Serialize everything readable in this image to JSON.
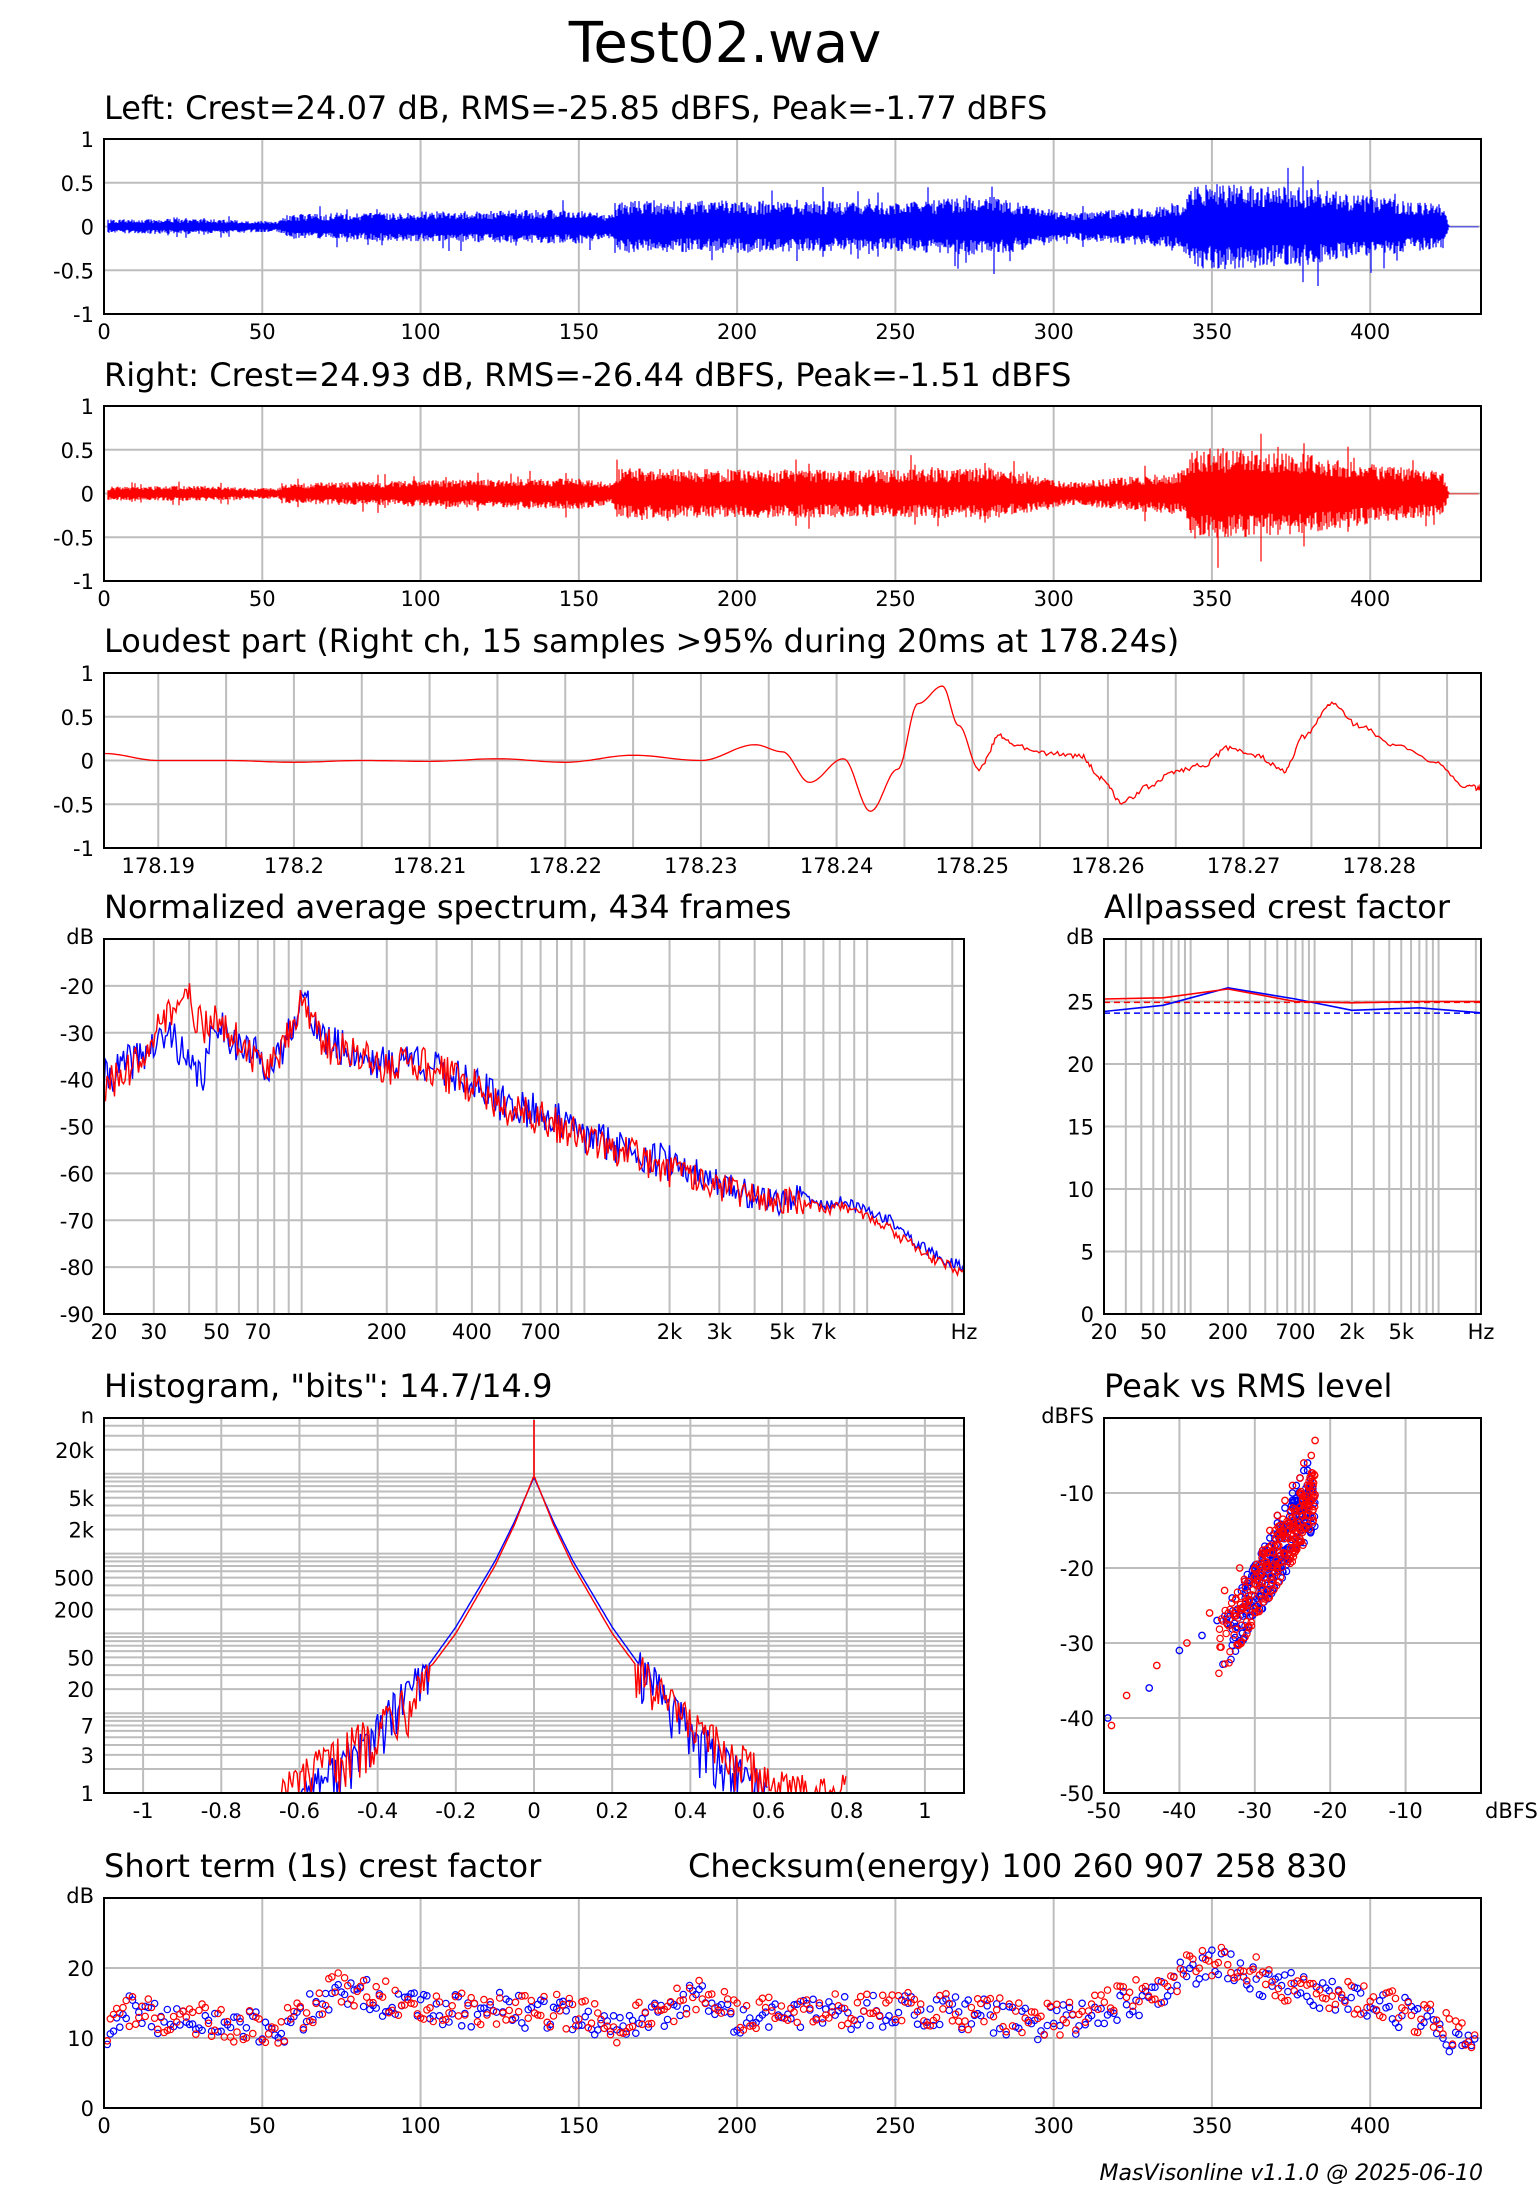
{
  "page": {
    "title": "Test02.wav",
    "footer": "MasVisonline v1.1.0 @ 2025-06-10"
  },
  "colors": {
    "left": "#0000ff",
    "right": "#ff0000",
    "grid": "#bdbdbd",
    "frame": "#000000"
  },
  "chart_data": [
    {
      "id": "left-waveform",
      "type": "line",
      "title": "Left: Crest=24.07 dB, RMS=-25.85 dBFS, Peak=-1.77 dBFS",
      "color": "blue",
      "xlim": [
        0,
        435
      ],
      "ylim": [
        -1,
        1
      ],
      "xticks": [
        0,
        50,
        100,
        150,
        200,
        250,
        300,
        350,
        400
      ],
      "xtick_labels": [
        "0",
        "50",
        "100",
        "150",
        "200",
        "250",
        "300",
        "350",
        "400"
      ],
      "yticks": [
        1,
        0.5,
        0,
        -0.5,
        -1
      ],
      "ytick_labels": [
        "1",
        "0.5",
        "0",
        "-0.5",
        "-1"
      ],
      "envelope": [
        {
          "t": 3,
          "a": 0.08
        },
        {
          "t": 30,
          "a": 0.09
        },
        {
          "t": 55,
          "a": 0.06
        },
        {
          "t": 58,
          "a": 0.14
        },
        {
          "t": 100,
          "a": 0.17
        },
        {
          "t": 150,
          "a": 0.2
        },
        {
          "t": 160,
          "a": 0.14
        },
        {
          "t": 163,
          "a": 0.3
        },
        {
          "t": 200,
          "a": 0.3
        },
        {
          "t": 250,
          "a": 0.28
        },
        {
          "t": 280,
          "a": 0.35
        },
        {
          "t": 305,
          "a": 0.15
        },
        {
          "t": 340,
          "a": 0.25
        },
        {
          "t": 345,
          "a": 0.5
        },
        {
          "t": 380,
          "a": 0.45
        },
        {
          "t": 410,
          "a": 0.3
        },
        {
          "t": 423,
          "a": 0.25
        },
        {
          "t": 425,
          "a": 0.0
        },
        {
          "t": 435,
          "a": 0.0
        }
      ]
    },
    {
      "id": "right-waveform",
      "type": "line",
      "title": "Right: Crest=24.93 dB, RMS=-26.44 dBFS, Peak=-1.51 dBFS",
      "color": "red",
      "xlim": [
        0,
        435
      ],
      "ylim": [
        -1,
        1
      ],
      "xticks": [
        0,
        50,
        100,
        150,
        200,
        250,
        300,
        350,
        400
      ],
      "xtick_labels": [
        "0",
        "50",
        "100",
        "150",
        "200",
        "250",
        "300",
        "350",
        "400"
      ],
      "yticks": [
        1,
        0.5,
        0,
        -0.5,
        -1
      ],
      "ytick_labels": [
        "1",
        "0.5",
        "0",
        "-0.5",
        "-1"
      ],
      "envelope": [
        {
          "t": 3,
          "a": 0.08
        },
        {
          "t": 30,
          "a": 0.09
        },
        {
          "t": 55,
          "a": 0.06
        },
        {
          "t": 58,
          "a": 0.12
        },
        {
          "t": 100,
          "a": 0.15
        },
        {
          "t": 150,
          "a": 0.18
        },
        {
          "t": 160,
          "a": 0.12
        },
        {
          "t": 163,
          "a": 0.3
        },
        {
          "t": 200,
          "a": 0.28
        },
        {
          "t": 250,
          "a": 0.27
        },
        {
          "t": 280,
          "a": 0.3
        },
        {
          "t": 305,
          "a": 0.13
        },
        {
          "t": 340,
          "a": 0.25
        },
        {
          "t": 345,
          "a": 0.55
        },
        {
          "t": 380,
          "a": 0.45
        },
        {
          "t": 410,
          "a": 0.3
        },
        {
          "t": 423,
          "a": 0.25
        },
        {
          "t": 425,
          "a": 0.0
        },
        {
          "t": 435,
          "a": 0.0
        }
      ]
    },
    {
      "id": "loudest-part",
      "type": "line",
      "title": "Loudest part (Right ch, 15 samples >95% during 20ms at 178.24s)",
      "color": "red",
      "xlim": [
        178.186,
        178.2875
      ],
      "ylim": [
        -1,
        1
      ],
      "xticks": [
        178.19,
        178.2,
        178.21,
        178.22,
        178.23,
        178.24,
        178.25,
        178.26,
        178.27,
        178.28
      ],
      "xtick_labels": [
        "178.19",
        "178.2",
        "178.21",
        "178.22",
        "178.23",
        "178.24",
        "178.25",
        "178.26",
        "178.27",
        "178.28"
      ],
      "yticks": [
        1,
        0.5,
        0,
        -0.5,
        -1
      ],
      "ytick_labels": [
        "1",
        "0.5",
        "0",
        "-0.5",
        "-1"
      ],
      "x": [
        178.186,
        178.19,
        178.195,
        178.2,
        178.205,
        178.21,
        178.215,
        178.22,
        178.225,
        178.23,
        178.234,
        178.236,
        178.238,
        178.2405,
        178.2425,
        178.2445,
        178.246,
        178.2478,
        178.249,
        178.2505,
        178.252,
        178.2535,
        178.256,
        178.258,
        178.2595,
        178.261,
        178.263,
        178.265,
        178.267,
        178.269,
        178.271,
        178.273,
        178.2745,
        178.2765,
        178.2785,
        178.281,
        178.284,
        178.2865,
        178.2875
      ],
      "y": [
        0.08,
        0.0,
        0.0,
        -0.02,
        0.0,
        -0.01,
        0.02,
        -0.02,
        0.06,
        0.0,
        0.18,
        0.1,
        -0.25,
        0.02,
        -0.58,
        -0.1,
        0.65,
        0.85,
        0.4,
        -0.1,
        0.28,
        0.15,
        0.08,
        0.05,
        -0.2,
        -0.48,
        -0.3,
        -0.12,
        -0.05,
        0.15,
        0.05,
        -0.12,
        0.28,
        0.65,
        0.4,
        0.18,
        0.0,
        -0.3,
        -0.32
      ]
    },
    {
      "id": "average-spectrum",
      "type": "line",
      "title": "Normalized average spectrum, 434 frames",
      "xscale": "log",
      "xlim": [
        20,
        22000
      ],
      "ylim": [
        -90,
        -10
      ],
      "ylabel": "dB",
      "xticks": [
        20,
        30,
        50,
        70,
        200,
        400,
        700,
        2000,
        3000,
        5000,
        7000,
        22000
      ],
      "xtick_labels": [
        "20",
        "30",
        "50",
        "70",
        "200",
        "400",
        "700",
        "2k",
        "3k",
        "5k",
        "7k",
        "Hz"
      ],
      "yticks": [
        -20,
        -30,
        -40,
        -50,
        -60,
        -70,
        -80,
        -90
      ],
      "ytick_labels": [
        "-20",
        "-30",
        "-40",
        "-50",
        "-60",
        "-70",
        "-80",
        "-90"
      ],
      "series": [
        {
          "name": "Left",
          "color": "blue",
          "x": [
            20,
            25,
            30,
            35,
            40,
            45,
            50,
            60,
            70,
            80,
            90,
            100,
            120,
            150,
            200,
            250,
            300,
            400,
            500,
            700,
            1000,
            1500,
            2000,
            2500,
            3000,
            4000,
            5000,
            6000,
            7000,
            8000,
            10000,
            12000,
            15000,
            18000,
            22000
          ],
          "y": [
            -40,
            -36,
            -33,
            -30,
            -38,
            -39,
            -27,
            -33,
            -35,
            -38,
            -30,
            -22,
            -32,
            -34,
            -37,
            -35,
            -38,
            -40,
            -45,
            -47,
            -52,
            -55,
            -58,
            -60,
            -62,
            -65,
            -66,
            -65,
            -67,
            -66,
            -68,
            -70,
            -75,
            -78,
            -80
          ]
        },
        {
          "name": "Right",
          "color": "red",
          "x": [
            20,
            25,
            30,
            35,
            40,
            45,
            50,
            60,
            70,
            80,
            90,
            100,
            120,
            150,
            200,
            250,
            300,
            400,
            500,
            700,
            1000,
            1500,
            2000,
            2500,
            3000,
            4000,
            5000,
            6000,
            7000,
            8000,
            10000,
            12000,
            15000,
            18000,
            22000
          ],
          "y": [
            -42,
            -38,
            -30,
            -25,
            -23,
            -30,
            -26,
            -32,
            -36,
            -37,
            -31,
            -22,
            -33,
            -34,
            -38,
            -36,
            -38,
            -41,
            -46,
            -48,
            -53,
            -56,
            -59,
            -61,
            -63,
            -65,
            -66,
            -66,
            -68,
            -67,
            -69,
            -72,
            -76,
            -79,
            -81
          ]
        }
      ]
    },
    {
      "id": "allpassed-crest",
      "type": "line",
      "title": "Allpassed crest factor",
      "xscale": "log",
      "xlim": [
        20,
        22000
      ],
      "ylim": [
        0,
        30
      ],
      "ylabel": "dB",
      "xticks": [
        20,
        50,
        200,
        700,
        2000,
        5000,
        22000
      ],
      "xtick_labels": [
        "20",
        "50",
        "200",
        "700",
        "2k",
        "5k",
        "Hz"
      ],
      "yticks": [
        25,
        20,
        15,
        10,
        5,
        0
      ],
      "ytick_labels": [
        "25",
        "20",
        "15",
        "10",
        "5",
        "0"
      ],
      "series": [
        {
          "name": "Left",
          "color": "blue",
          "x": [
            20,
            60,
            200,
            700,
            2000,
            7000,
            22000
          ],
          "y": [
            24.2,
            24.7,
            26.1,
            25.2,
            24.3,
            24.5,
            24.1
          ]
        },
        {
          "name": "Right",
          "color": "red",
          "x": [
            20,
            60,
            200,
            700,
            2000,
            7000,
            22000
          ],
          "y": [
            25.2,
            25.3,
            26.0,
            25.0,
            24.9,
            25.0,
            25.0
          ]
        }
      ],
      "reference_lines": [
        {
          "color": "blue",
          "y": 24.07
        },
        {
          "color": "red",
          "y": 24.93
        }
      ]
    },
    {
      "id": "histogram",
      "type": "line",
      "title": "Histogram, \"bits\": 14.7/14.9",
      "xlim": [
        -1.1,
        1.1
      ],
      "ylim": [
        1,
        50000
      ],
      "yscale": "log",
      "ylabel": "n",
      "xticks": [
        -1,
        -0.8,
        -0.6,
        -0.4,
        -0.2,
        0,
        0.2,
        0.4,
        0.6,
        0.8,
        1
      ],
      "xtick_labels": [
        "-1",
        "-0.8",
        "-0.6",
        "-0.4",
        "-0.2",
        "0",
        "0.2",
        "0.4",
        "0.6",
        "0.8",
        "1"
      ],
      "yticks": [
        20000,
        5000,
        2000,
        500,
        200,
        50,
        20,
        7,
        3,
        1
      ],
      "ytick_labels": [
        "20k",
        "5k",
        "2k",
        "500",
        "200",
        "50",
        "20",
        "7",
        "3",
        "1"
      ],
      "series": [
        {
          "name": "Left",
          "color": "blue",
          "x": [
            -0.6,
            -0.5,
            -0.4,
            -0.3,
            -0.2,
            -0.1,
            -0.05,
            0,
            0.05,
            0.1,
            0.2,
            0.3,
            0.4,
            0.5,
            0.6
          ],
          "y": [
            1,
            2,
            6,
            25,
            120,
            800,
            2500,
            9000,
            2500,
            800,
            120,
            25,
            6,
            2,
            1
          ]
        },
        {
          "name": "Right",
          "color": "red",
          "x": [
            -0.65,
            -0.5,
            -0.4,
            -0.3,
            -0.2,
            -0.1,
            -0.05,
            0,
            0.05,
            0.1,
            0.2,
            0.3,
            0.4,
            0.5,
            0.65,
            0.8
          ],
          "y": [
            1,
            3,
            7,
            22,
            100,
            700,
            2300,
            9500,
            2300,
            700,
            100,
            22,
            7,
            3,
            1,
            1
          ]
        }
      ]
    },
    {
      "id": "peak-vs-rms",
      "type": "scatter",
      "title": "Peak vs RMS level",
      "xlim": [
        -50,
        0
      ],
      "ylim": [
        -50,
        0
      ],
      "xlabel": "dBFS",
      "ylabel": "dBFS",
      "xticks": [
        -50,
        -40,
        -30,
        -20,
        -10
      ],
      "xtick_labels": [
        "-50",
        "-40",
        "-30",
        "-20",
        "-10"
      ],
      "yticks": [
        -10,
        -20,
        -30,
        -40,
        -50
      ],
      "ytick_labels": [
        "-10",
        "-20",
        "-30",
        "-40",
        "-50"
      ],
      "series": [
        {
          "name": "Left",
          "color": "blue",
          "x": [
            -49.5,
            -44,
            -40,
            -37,
            -35,
            -33,
            -31,
            -30,
            -29,
            -28,
            -27,
            -26,
            -25,
            -24.5,
            -24,
            -23.5,
            -23,
            -22.5,
            -28,
            -26,
            -31,
            -27,
            -25,
            -23
          ],
          "y": [
            -40,
            -36,
            -31,
            -29,
            -27,
            -24,
            -22,
            -21,
            -19,
            -16,
            -14,
            -12,
            -10,
            -9,
            -8,
            -7,
            -7,
            -9,
            -18,
            -15,
            -23,
            -13,
            -11,
            -6
          ]
        },
        {
          "name": "Right",
          "color": "red",
          "x": [
            -49,
            -47,
            -43,
            -39,
            -36,
            -34,
            -32,
            -30,
            -29,
            -28,
            -27,
            -26,
            -25,
            -24,
            -23.5,
            -22.5,
            -22,
            -27,
            -29,
            -31,
            -25,
            -24
          ],
          "y": [
            -41,
            -37,
            -33,
            -30,
            -26,
            -23,
            -20,
            -20,
            -18,
            -15,
            -13,
            -11,
            -9,
            -8,
            -6,
            -5,
            -3,
            -17,
            -22,
            -25,
            -12,
            -10
          ]
        }
      ]
    },
    {
      "id": "short-term-crest",
      "type": "scatter",
      "title": "Short term (1s) crest factor",
      "annotation": "Checksum(energy)  100 260 907 258 830",
      "xlim": [
        0,
        435
      ],
      "ylim": [
        0,
        30
      ],
      "ylabel": "dB",
      "xticks": [
        0,
        50,
        100,
        150,
        200,
        250,
        300,
        350,
        400
      ],
      "xtick_labels": [
        "0",
        "50",
        "100",
        "150",
        "200",
        "250",
        "300",
        "350",
        "400"
      ],
      "yticks": [
        20,
        10,
        0
      ],
      "ytick_labels": [
        "20",
        "10",
        "0"
      ],
      "trend": [
        {
          "t": 0,
          "v": 9
        },
        {
          "t": 5,
          "v": 14
        },
        {
          "t": 30,
          "v": 12
        },
        {
          "t": 55,
          "v": 11
        },
        {
          "t": 75,
          "v": 17
        },
        {
          "t": 100,
          "v": 14
        },
        {
          "t": 130,
          "v": 14
        },
        {
          "t": 150,
          "v": 13
        },
        {
          "t": 160,
          "v": 11
        },
        {
          "t": 190,
          "v": 16
        },
        {
          "t": 200,
          "v": 13
        },
        {
          "t": 250,
          "v": 14
        },
        {
          "t": 280,
          "v": 13
        },
        {
          "t": 300,
          "v": 12
        },
        {
          "t": 330,
          "v": 16
        },
        {
          "t": 350,
          "v": 21
        },
        {
          "t": 375,
          "v": 17
        },
        {
          "t": 400,
          "v": 15
        },
        {
          "t": 420,
          "v": 12
        },
        {
          "t": 430,
          "v": 9
        }
      ]
    }
  ]
}
